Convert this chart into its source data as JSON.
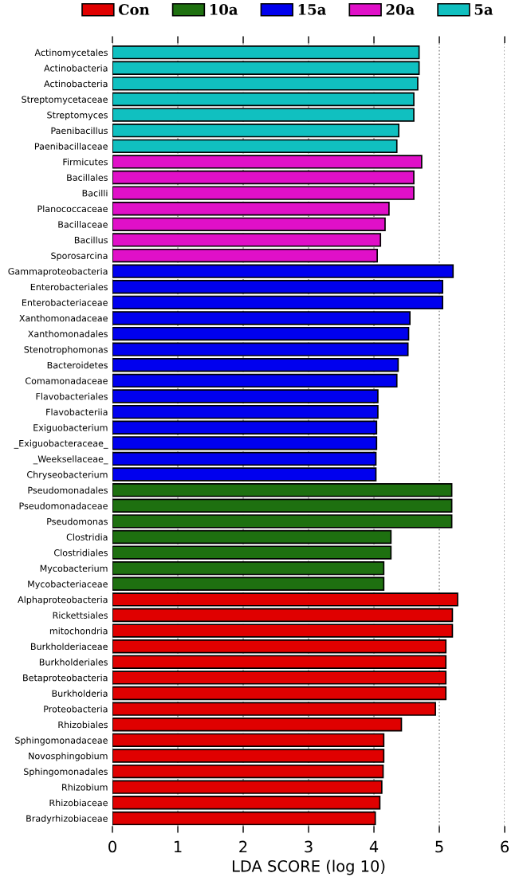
{
  "chart_data": {
    "type": "bar",
    "orientation": "horizontal",
    "xlabel": "LDA SCORE (log 10)",
    "categories": [
      "Actinomycetales",
      "Actinobacteria",
      "Actinobacteria",
      "Streptomycetaceae",
      "Streptomyces",
      "Paenibacillus",
      "Paenibacillaceae",
      "Firmicutes",
      "Bacillales",
      "Bacilli",
      "Planococcaceae",
      "Bacillaceae",
      "Bacillus",
      "Sporosarcina",
      "Gammaproteobacteria",
      "Enterobacteriales",
      "Enterobacteriaceae",
      "Xanthomonadaceae",
      "Xanthomonadales",
      "Stenotrophomonas",
      "Bacteroidetes",
      "Comamonadaceae",
      "Flavobacteriales",
      "Flavobacteriia",
      "Exiguobacterium",
      "_Exiguobacteraceae_",
      "_Weeksellaceae_",
      "Chryseobacterium",
      "Pseudomonadales",
      "Pseudomonadaceae",
      "Pseudomonas",
      "Clostridia",
      "Clostridiales",
      "Mycobacterium",
      "Mycobacteriaceae",
      "Alphaproteobacteria",
      "Rickettsiales",
      "mitochondria",
      "Burkholderiaceae",
      "Burkholderiales",
      "Betaproteobacteria",
      "Burkholderia",
      "Proteobacteria",
      "Rhizobiales",
      "Sphingomonadaceae",
      "Novosphingobium",
      "Sphingomonadales",
      "Rhizobium",
      "Rhizobiaceae",
      "Bradyrhizobiaceae"
    ],
    "series": [
      {
        "name": "Con",
        "color": "#e00000",
        "values": [
          null,
          null,
          null,
          null,
          null,
          null,
          null,
          null,
          null,
          null,
          null,
          null,
          null,
          null,
          null,
          null,
          null,
          null,
          null,
          null,
          null,
          null,
          null,
          null,
          null,
          null,
          null,
          null,
          null,
          null,
          null,
          null,
          null,
          null,
          null,
          5.28,
          5.2,
          5.2,
          5.1,
          5.1,
          5.1,
          5.1,
          4.94,
          4.42,
          4.15,
          4.15,
          4.14,
          4.12,
          4.09,
          4.02
        ]
      },
      {
        "name": "10a",
        "color": "#1e7010",
        "values": [
          null,
          null,
          null,
          null,
          null,
          null,
          null,
          null,
          null,
          null,
          null,
          null,
          null,
          null,
          null,
          null,
          null,
          null,
          null,
          null,
          null,
          null,
          null,
          null,
          null,
          null,
          null,
          null,
          5.19,
          5.19,
          5.19,
          4.26,
          4.26,
          4.15,
          4.15,
          null,
          null,
          null,
          null,
          null,
          null,
          null,
          null,
          null,
          null,
          null,
          null,
          null,
          null,
          null
        ]
      },
      {
        "name": "15a",
        "color": "#0000ee",
        "values": [
          null,
          null,
          null,
          null,
          null,
          null,
          null,
          null,
          null,
          null,
          null,
          null,
          null,
          null,
          5.21,
          5.05,
          5.05,
          4.55,
          4.53,
          4.52,
          4.37,
          4.35,
          4.06,
          4.06,
          4.04,
          4.04,
          4.03,
          4.03,
          null,
          null,
          null,
          null,
          null,
          null,
          null,
          null,
          null,
          null,
          null,
          null,
          null,
          null,
          null,
          null,
          null,
          null,
          null,
          null,
          null,
          null
        ]
      },
      {
        "name": "20a",
        "color": "#e010c8",
        "values": [
          null,
          null,
          null,
          null,
          null,
          null,
          null,
          4.73,
          4.61,
          4.61,
          4.23,
          4.17,
          4.1,
          4.05,
          null,
          null,
          null,
          null,
          null,
          null,
          null,
          null,
          null,
          null,
          null,
          null,
          null,
          null,
          null,
          null,
          null,
          null,
          null,
          null,
          null,
          null,
          null,
          null,
          null,
          null,
          null,
          null,
          null,
          null,
          null,
          null,
          null,
          null,
          null,
          null
        ]
      },
      {
        "name": "5a",
        "color": "#10c0c0",
        "values": [
          4.69,
          4.69,
          4.67,
          4.61,
          4.61,
          4.38,
          4.35,
          null,
          null,
          null,
          null,
          null,
          null,
          null,
          null,
          null,
          null,
          null,
          null,
          null,
          null,
          null,
          null,
          null,
          null,
          null,
          null,
          null,
          null,
          null,
          null,
          null,
          null,
          null,
          null,
          null,
          null,
          null,
          null,
          null,
          null,
          null,
          null,
          null,
          null,
          null,
          null,
          null,
          null,
          null
        ]
      }
    ],
    "xlim": [
      0,
      6
    ],
    "xticks": [
      0,
      1,
      2,
      3,
      4,
      5,
      6
    ],
    "grid": "x",
    "legend": "top"
  }
}
